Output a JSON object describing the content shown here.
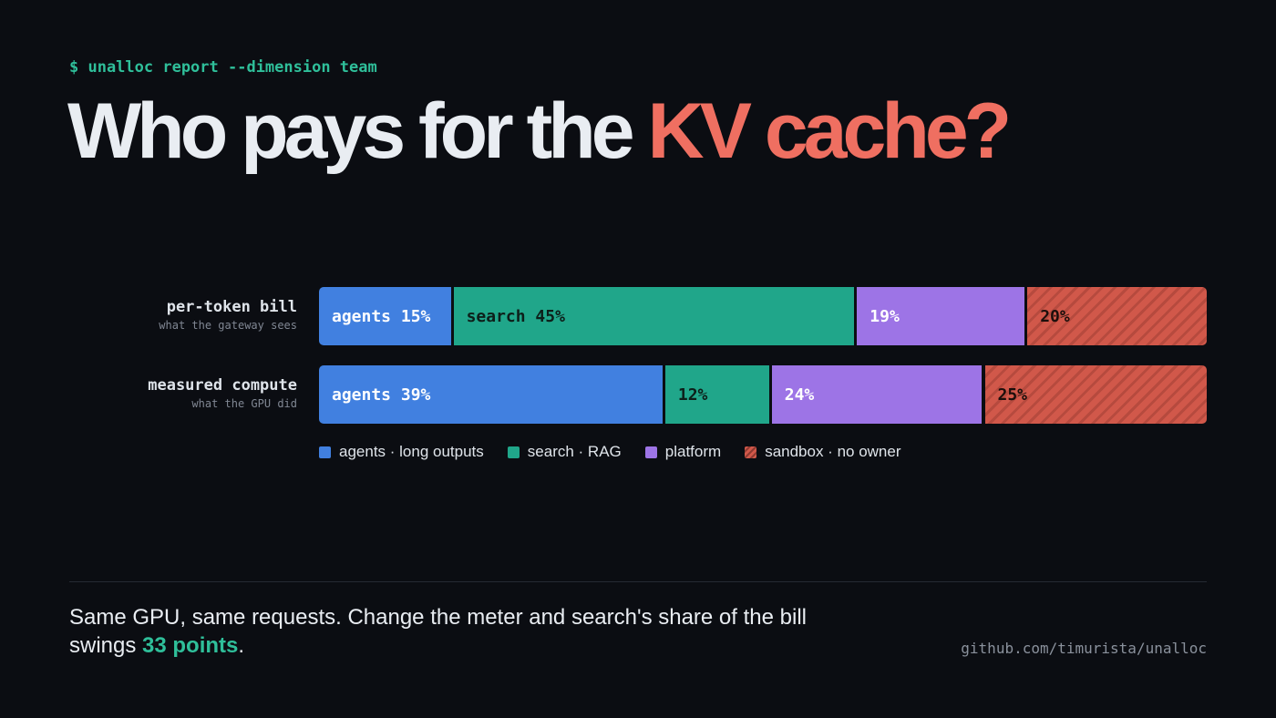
{
  "header": {
    "command": "$ unalloc report --dimension team",
    "title_main": "Who pays for the ",
    "title_accent": "KV cache?"
  },
  "chart_data": {
    "type": "bar",
    "orientation": "horizontal",
    "stacked": true,
    "categories": [
      {
        "label": "per-token bill",
        "sublabel": "what the gateway sees"
      },
      {
        "label": "measured compute",
        "sublabel": "what the GPU did"
      }
    ],
    "series": [
      {
        "name": "agents · long outputs",
        "key": "agents",
        "color": "#4180e0",
        "text_color": "#ffffff",
        "values": [
          15,
          39
        ],
        "labels": [
          "agents 15%",
          "agents 39%"
        ]
      },
      {
        "name": "search · RAG",
        "key": "search",
        "color": "#20a68a",
        "text_color": "#0d1f1a",
        "values": [
          45,
          12
        ],
        "labels": [
          "search 45%",
          "12%"
        ]
      },
      {
        "name": "platform",
        "key": "platform",
        "color": "#9d74e6",
        "text_color": "#ffffff",
        "values": [
          19,
          24
        ],
        "labels": [
          "19%",
          "24%"
        ]
      },
      {
        "name": "sandbox · no owner",
        "key": "sandbox",
        "color": "#d1584a",
        "text_color": "#1c0f0c",
        "pattern": "hatched",
        "values": [
          20,
          25
        ],
        "labels": [
          "20%",
          "25%"
        ]
      }
    ],
    "grid": false,
    "legend_position": "bottom-left"
  },
  "footer": {
    "caption_pre": "Same GPU, same requests. Change the meter and search's share of the bill swings ",
    "caption_highlight": "33 points",
    "caption_post": ".",
    "repo": "github.com/timurista/unalloc"
  }
}
